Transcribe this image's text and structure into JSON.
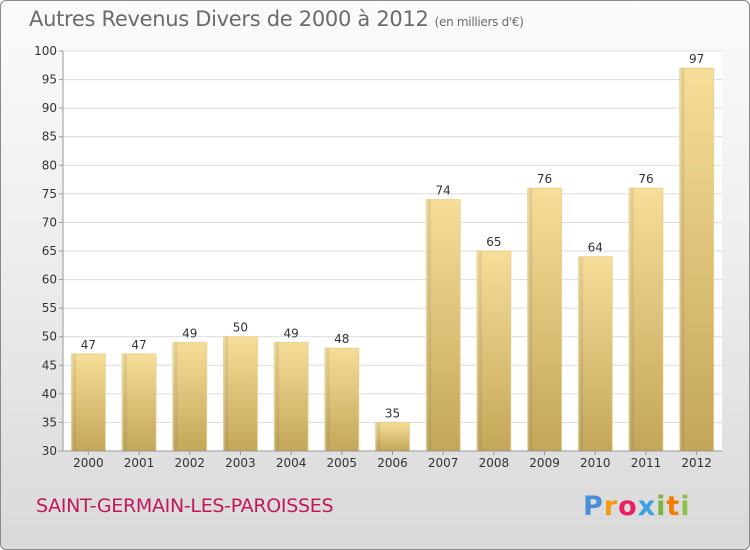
{
  "header": {
    "title": "Autres Revenus Divers de 2000 à 2012",
    "unit": "(en milliers d'€)"
  },
  "footer": {
    "commune": "SAINT-GERMAIN-LES-PAROISSES",
    "brand": "Proxiti"
  },
  "colors": {
    "bar_light": "#f5dd96",
    "bar_dark": "#c2a458",
    "grid": "#dcdcdc",
    "axis_text": "#333333",
    "commune_text": "#c2185b"
  },
  "chart_data": {
    "type": "bar",
    "title": "Autres Revenus Divers de 2000 à 2012",
    "subtitle": "(en milliers d'€)",
    "xlabel": "",
    "ylabel": "",
    "categories": [
      "2000",
      "2001",
      "2002",
      "2003",
      "2004",
      "2005",
      "2006",
      "2007",
      "2008",
      "2009",
      "2010",
      "2011",
      "2012"
    ],
    "values": [
      47,
      47,
      49,
      50,
      49,
      48,
      35,
      74,
      65,
      76,
      64,
      76,
      97
    ],
    "ylim": [
      30,
      100
    ],
    "yticks": [
      30,
      35,
      40,
      45,
      50,
      55,
      60,
      65,
      70,
      75,
      80,
      85,
      90,
      95,
      100
    ],
    "grid": true,
    "data_labels": true
  }
}
